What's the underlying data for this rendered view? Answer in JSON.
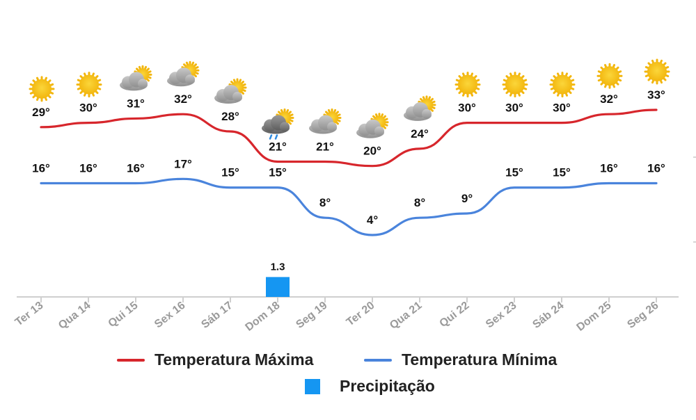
{
  "chart_data": {
    "type": "line",
    "categories": [
      "Ter 13",
      "Qua 14",
      "Qui 15",
      "Sex 16",
      "Sáb 17",
      "Dom 18",
      "Seg 19",
      "Ter 20",
      "Qua 21",
      "Qui 22",
      "Sex 23",
      "Sáb 24",
      "Dom 25",
      "Seg 26"
    ],
    "series": [
      {
        "name": "Temperatura Máxima",
        "type": "line",
        "color": "#d7262c",
        "values": [
          29,
          30,
          31,
          32,
          28,
          21,
          21,
          20,
          24,
          30,
          30,
          30,
          32,
          33
        ],
        "labels": [
          "29°",
          "30°",
          "31°",
          "32°",
          "28°",
          "21°",
          "21°",
          "20°",
          "24°",
          "30°",
          "30°",
          "30°",
          "32°",
          "33°"
        ]
      },
      {
        "name": "Temperatura Mínima",
        "type": "line",
        "color": "#4a84dc",
        "values": [
          16,
          16,
          16,
          17,
          15,
          15,
          8,
          4,
          8,
          9,
          15,
          15,
          16,
          16
        ],
        "labels": [
          "16°",
          "16°",
          "16°",
          "17°",
          "15°",
          "15°",
          "8°",
          "4°",
          "8°",
          "9°",
          "15°",
          "15°",
          "16°",
          "16°"
        ]
      },
      {
        "name": "Precipitação",
        "type": "bar",
        "color": "#1596f2",
        "values": [
          0,
          0,
          0,
          0,
          0,
          1.3,
          0,
          0,
          0,
          0,
          0,
          0,
          0,
          0
        ],
        "labels": [
          "",
          "",
          "",
          "",
          "",
          "1.3",
          "",
          "",
          "",
          "",
          "",
          "",
          "",
          ""
        ]
      }
    ],
    "icons": [
      "sun-icon",
      "sun-icon",
      "partly-cloudy-icon",
      "partly-cloudy-icon",
      "partly-cloudy-icon",
      "rain-icon",
      "partly-cloudy-icon",
      "partly-cloudy-icon",
      "partly-cloudy-icon",
      "sun-icon",
      "sun-icon",
      "sun-icon",
      "sun-icon",
      "sun-icon"
    ],
    "legend_position": "bottom",
    "grid": false
  },
  "legend": {
    "max_label": "Temperatura Máxima",
    "min_label": "Temperatura Mínima",
    "precip_label": "Precipitação"
  }
}
